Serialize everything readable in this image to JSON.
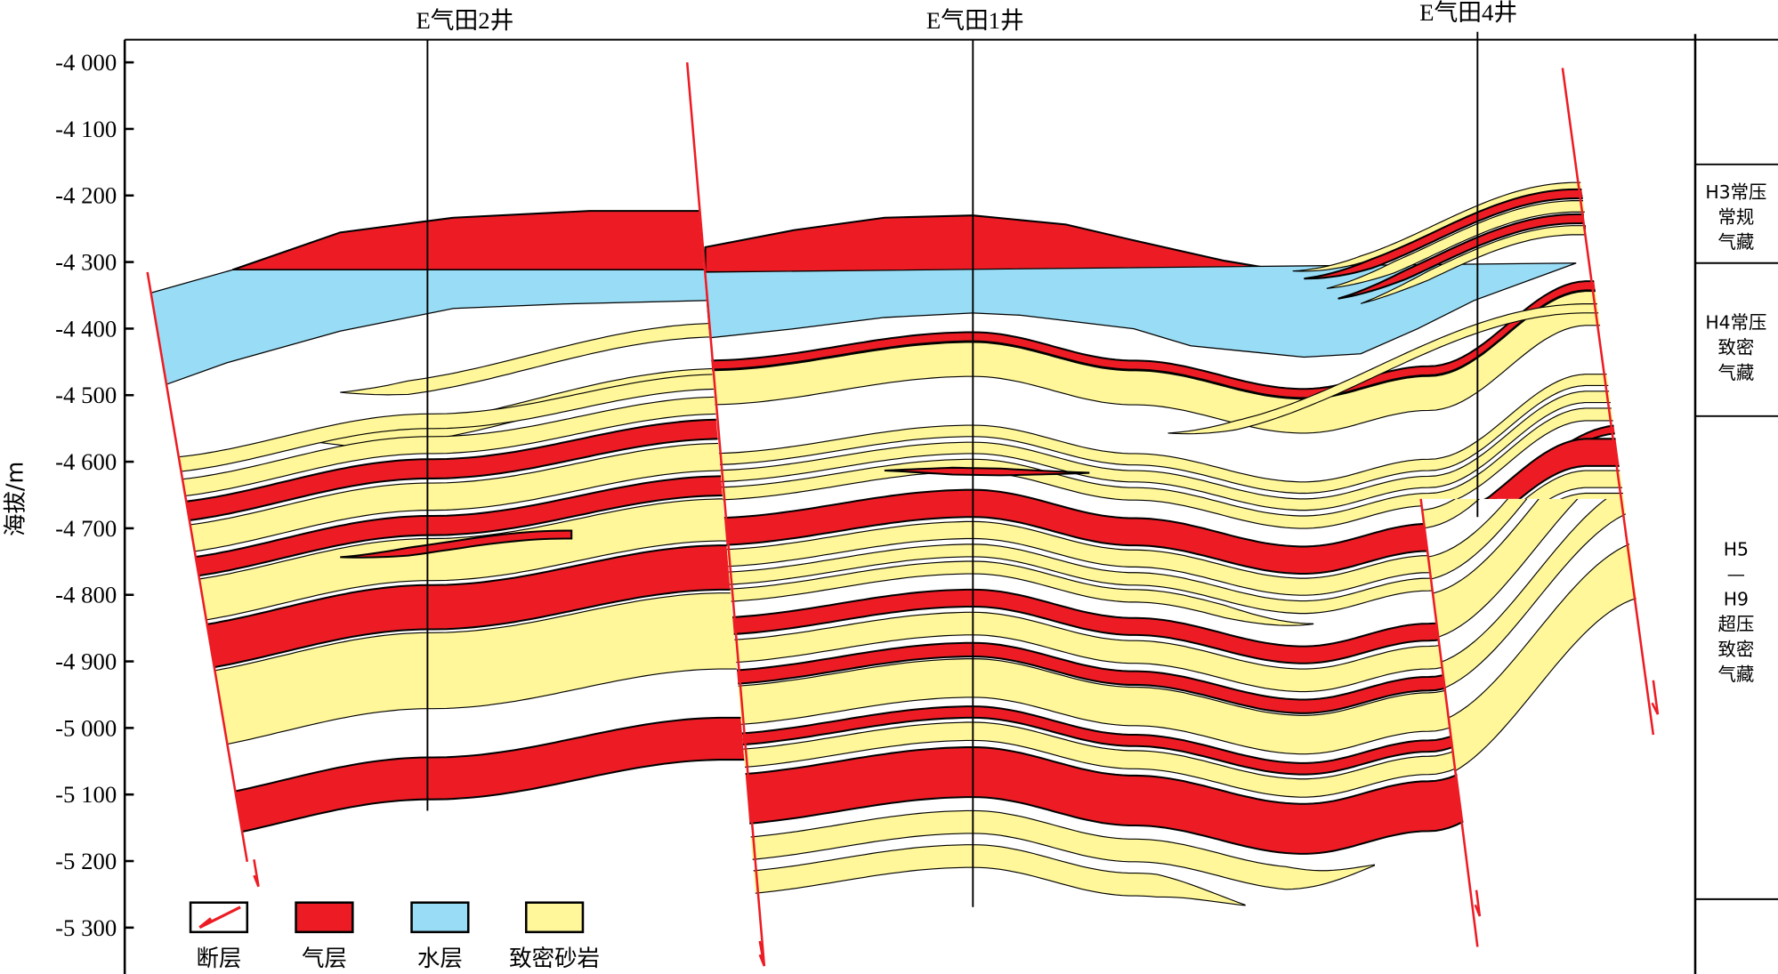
{
  "wells": [
    {
      "label": "E气田2井"
    },
    {
      "label": "E气田1井"
    },
    {
      "label": "E气田4井"
    }
  ],
  "axis": {
    "label": "海拔/m",
    "ticks": [
      "-4 000",
      "-4 100",
      "-4 200",
      "-4 300",
      "-4 400",
      "-4 500",
      "-4 600",
      "-4 700",
      "-4 800",
      "-4 900",
      "-5 000",
      "-5 100",
      "-5 200",
      "-5 300"
    ]
  },
  "reservoir_column": [
    {
      "lines": [
        "H3常压",
        "常规",
        "气藏"
      ]
    },
    {
      "lines": [
        "H4常压",
        "致密",
        "气藏"
      ]
    },
    {
      "lines": [
        "H5",
        "—",
        "H9",
        "超压",
        "致密",
        "气藏"
      ]
    }
  ],
  "legend": [
    {
      "label": "断层",
      "color": "#ffffff",
      "icon": "fault-icon"
    },
    {
      "label": "气层",
      "color": "#ed1c24",
      "icon": "gas-layer-swatch"
    },
    {
      "label": "水层",
      "color": "#99dcf5",
      "icon": "water-layer-swatch"
    },
    {
      "label": "致密砂岩",
      "color": "#fff799",
      "icon": "tight-sandstone-swatch"
    }
  ]
}
